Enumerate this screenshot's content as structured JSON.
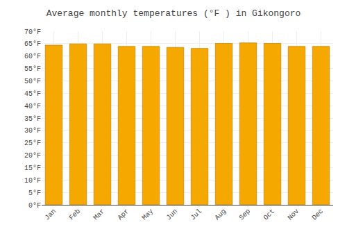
{
  "chart_data": {
    "type": "bar",
    "title": "Average monthly temperatures (°F ) in Gikongoro",
    "categories": [
      "Jan",
      "Feb",
      "Mar",
      "Apr",
      "May",
      "Jun",
      "Jul",
      "Aug",
      "Sep",
      "Oct",
      "Nov",
      "Dec"
    ],
    "values": [
      64.4,
      64.9,
      64.9,
      63.9,
      63.9,
      63.5,
      63.1,
      65.1,
      65.3,
      65.1,
      63.9,
      63.9
    ],
    "color": "#F5A800",
    "ylim": [
      0,
      70
    ],
    "yticks": [
      {
        "value": 0,
        "label": "0°F"
      },
      {
        "value": 5,
        "label": "5°F"
      },
      {
        "value": 10,
        "label": "10°F"
      },
      {
        "value": 15,
        "label": "15°F"
      },
      {
        "value": 20,
        "label": "20°F"
      },
      {
        "value": 25,
        "label": "25°F"
      },
      {
        "value": 30,
        "label": "30°F"
      },
      {
        "value": 35,
        "label": "35°F"
      },
      {
        "value": 40,
        "label": "40°F"
      },
      {
        "value": 45,
        "label": "45°F"
      },
      {
        "value": 50,
        "label": "50°F"
      },
      {
        "value": 55,
        "label": "55°F"
      },
      {
        "value": 60,
        "label": "60°F"
      },
      {
        "value": 65,
        "label": "65°F"
      },
      {
        "value": 70,
        "label": "70°F"
      }
    ],
    "grid": true
  }
}
